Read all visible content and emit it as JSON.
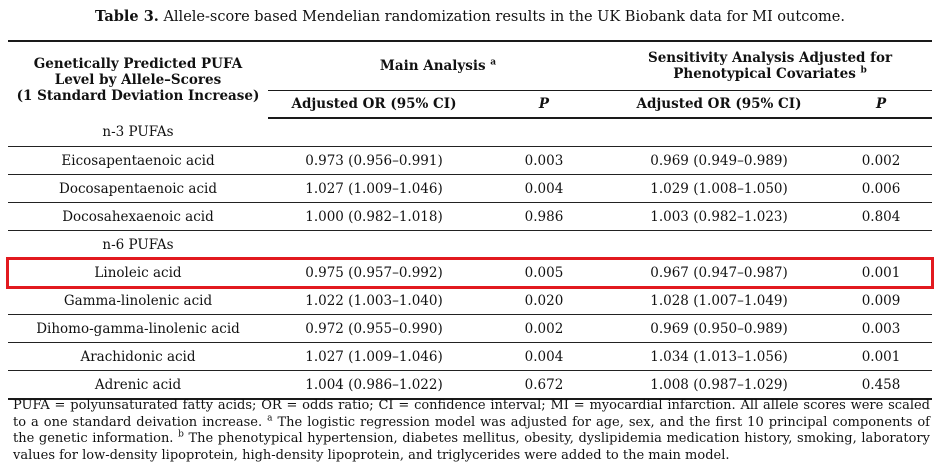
{
  "caption": {
    "label": "Table 3.",
    "text": " Allele-score based Mendelian randomization results in the UK Biobank data for MI outcome."
  },
  "table": {
    "header": {
      "col1_lines": [
        "Genetically Predicted PUFA",
        "Level by Allele–Scores",
        "(1 Standard Deviation Increase)"
      ],
      "group_main": {
        "label": "Main Analysis",
        "sup": "a"
      },
      "group_sensitivity": {
        "line1": "Sensitivity Analysis Adjusted for",
        "line2": "Phenotypical Covariates",
        "sup": "b"
      },
      "sub": {
        "or_main": "Adjusted OR (95% CI)",
        "p_main": "P",
        "or_sens": "Adjusted OR (95% CI)",
        "p_sens": "P"
      }
    },
    "rows": [
      {
        "type": "section",
        "name": "n-3 PUFAs"
      },
      {
        "type": "data",
        "name": "Eicosapentaenoic acid",
        "or_main": "0.973 (0.956–0.991)",
        "p_main": "0.003",
        "or_sens": "0.969 (0.949–0.989)",
        "p_sens": "0.002"
      },
      {
        "type": "data",
        "name": "Docosapentaenoic acid",
        "or_main": "1.027 (1.009–1.046)",
        "p_main": "0.004",
        "or_sens": "1.029 (1.008–1.050)",
        "p_sens": "0.006"
      },
      {
        "type": "data",
        "name": "Docosahexaenoic acid",
        "or_main": "1.000 (0.982–1.018)",
        "p_main": "0.986",
        "or_sens": "1.003 (0.982–1.023)",
        "p_sens": "0.804"
      },
      {
        "type": "section",
        "name": "n-6 PUFAs"
      },
      {
        "type": "data",
        "name": "Linoleic acid",
        "or_main": "0.975 (0.957–0.992)",
        "p_main": "0.005",
        "or_sens": "0.967 (0.947–0.987)",
        "p_sens": "0.001",
        "highlighted": true
      },
      {
        "type": "data",
        "name": "Gamma-linolenic acid",
        "or_main": "1.022 (1.003–1.040)",
        "p_main": "0.020",
        "or_sens": "1.028 (1.007–1.049)",
        "p_sens": "0.009"
      },
      {
        "type": "data",
        "name": "Dihomo-gamma-linolenic acid",
        "or_main": "0.972 (0.955–0.990)",
        "p_main": "0.002",
        "or_sens": "0.969 (0.950–0.989)",
        "p_sens": "0.003"
      },
      {
        "type": "data",
        "name": "Arachidonic acid",
        "or_main": "1.027 (1.009–1.046)",
        "p_main": "0.004",
        "or_sens": "1.034 (1.013–1.056)",
        "p_sens": "0.001"
      },
      {
        "type": "data",
        "name": "Adrenic acid",
        "or_main": "1.004 (0.986–1.022)",
        "p_main": "0.672",
        "or_sens": "1.008 (0.987–1.029)",
        "p_sens": "0.458"
      }
    ]
  },
  "highlight": {
    "row": "Linoleic acid",
    "color": "#e2191f"
  },
  "footnote": {
    "part1": "PUFA = polyunsaturated fatty acids; OR = odds ratio; CI = confidence interval; MI = myocardial infarction. All allele scores were scaled to a one standard deivation increase. ",
    "sup_a": "a",
    "part2": " The logistic regression model was adjusted for age, sex, and the first 10 principal components of the genetic information. ",
    "sup_b": "b",
    "part3": " The phenotypical hypertension, diabetes mellitus, obesity, dyslipidemia medication history, smoking, laboratory values for low-density lipoprotein, high-density lipoprotein, and triglycerides were added to the main model."
  }
}
